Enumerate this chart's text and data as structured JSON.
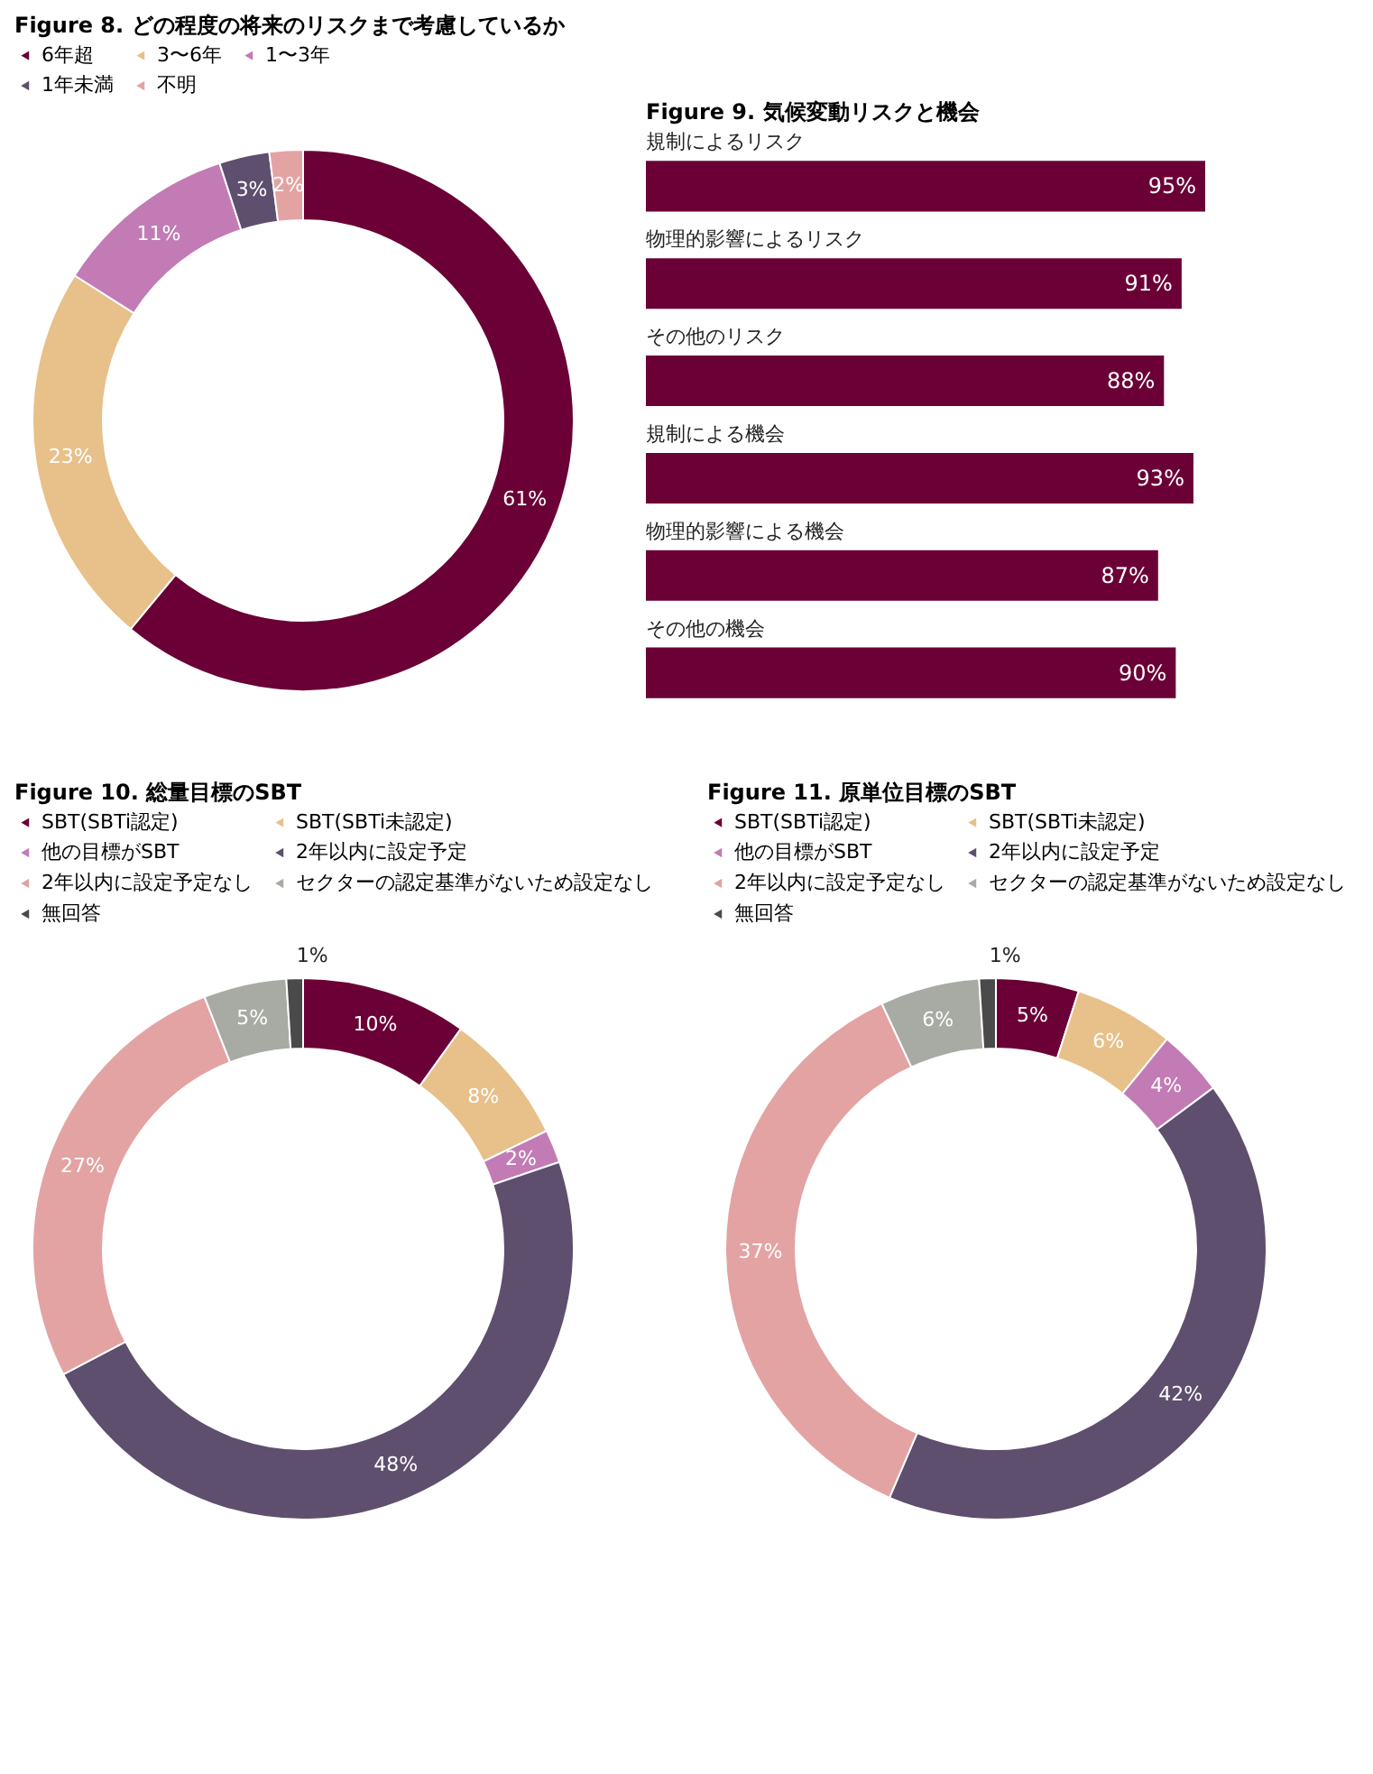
{
  "chart_data": [
    {
      "type": "donut",
      "title": "Figure 8. どの程度の将来のリスクまで考慮しているか",
      "legend": "top",
      "categories": [
        "6年超",
        "3〜6年",
        "1〜3年",
        "1年未満",
        "不明"
      ],
      "values": [
        61,
        23,
        11,
        3,
        2
      ],
      "value_labels": [
        "61%",
        "23%",
        "11%",
        "3%",
        "2%"
      ],
      "colors": [
        "#6b0036",
        "#e8c08a",
        "#c27bb4",
        "#5e4f6e",
        "#e3a3a3"
      ]
    },
    {
      "type": "bar",
      "orientation": "horizontal",
      "title": "Figure 9. 気候変動リスクと機会",
      "categories": [
        "規制によるリスク",
        "物理的影響によるリスク",
        "その他のリスク",
        "規制による機会",
        "物理的影響による機会",
        "その他の機会"
      ],
      "values": [
        95,
        91,
        88,
        93,
        87,
        90
      ],
      "value_labels": [
        "95%",
        "91%",
        "88%",
        "93%",
        "87%",
        "90%"
      ],
      "color": "#6b0036"
    },
    {
      "type": "donut",
      "title": "Figure 10. 総量目標のSBT",
      "legend": "top",
      "categories": [
        "SBT(SBTi認定)",
        "SBT(SBTi未認定)",
        "他の目標がSBT",
        "2年以内に設定予定",
        "2年以内に設定予定なし",
        "セクターの認定基準がないため設定なし",
        "無回答"
      ],
      "values": [
        10,
        8,
        2,
        48,
        27,
        5,
        1
      ],
      "value_labels": [
        "10%",
        "8%",
        "2%",
        "48%",
        "27%",
        "5%",
        "1%"
      ],
      "colors": [
        "#6b0036",
        "#e8c08a",
        "#c27bb4",
        "#5e4f6e",
        "#e3a3a3",
        "#a8aba3",
        "#4a4a4a"
      ]
    },
    {
      "type": "donut",
      "title": "Figure 11. 原単位目標のSBT",
      "legend": "top",
      "categories": [
        "SBT(SBTi認定)",
        "SBT(SBTi未認定)",
        "他の目標がSBT",
        "2年以内に設定予定",
        "2年以内に設定予定なし",
        "セクターの認定基準がないため設定なし",
        "無回答"
      ],
      "values": [
        5,
        6,
        4,
        42,
        37,
        6,
        1
      ],
      "value_labels": [
        "5%",
        "6%",
        "4%",
        "42%",
        "37%",
        "6%",
        "1%"
      ],
      "colors": [
        "#6b0036",
        "#e8c08a",
        "#c27bb4",
        "#5e4f6e",
        "#e3a3a3",
        "#a8aba3",
        "#4a4a4a"
      ]
    }
  ]
}
